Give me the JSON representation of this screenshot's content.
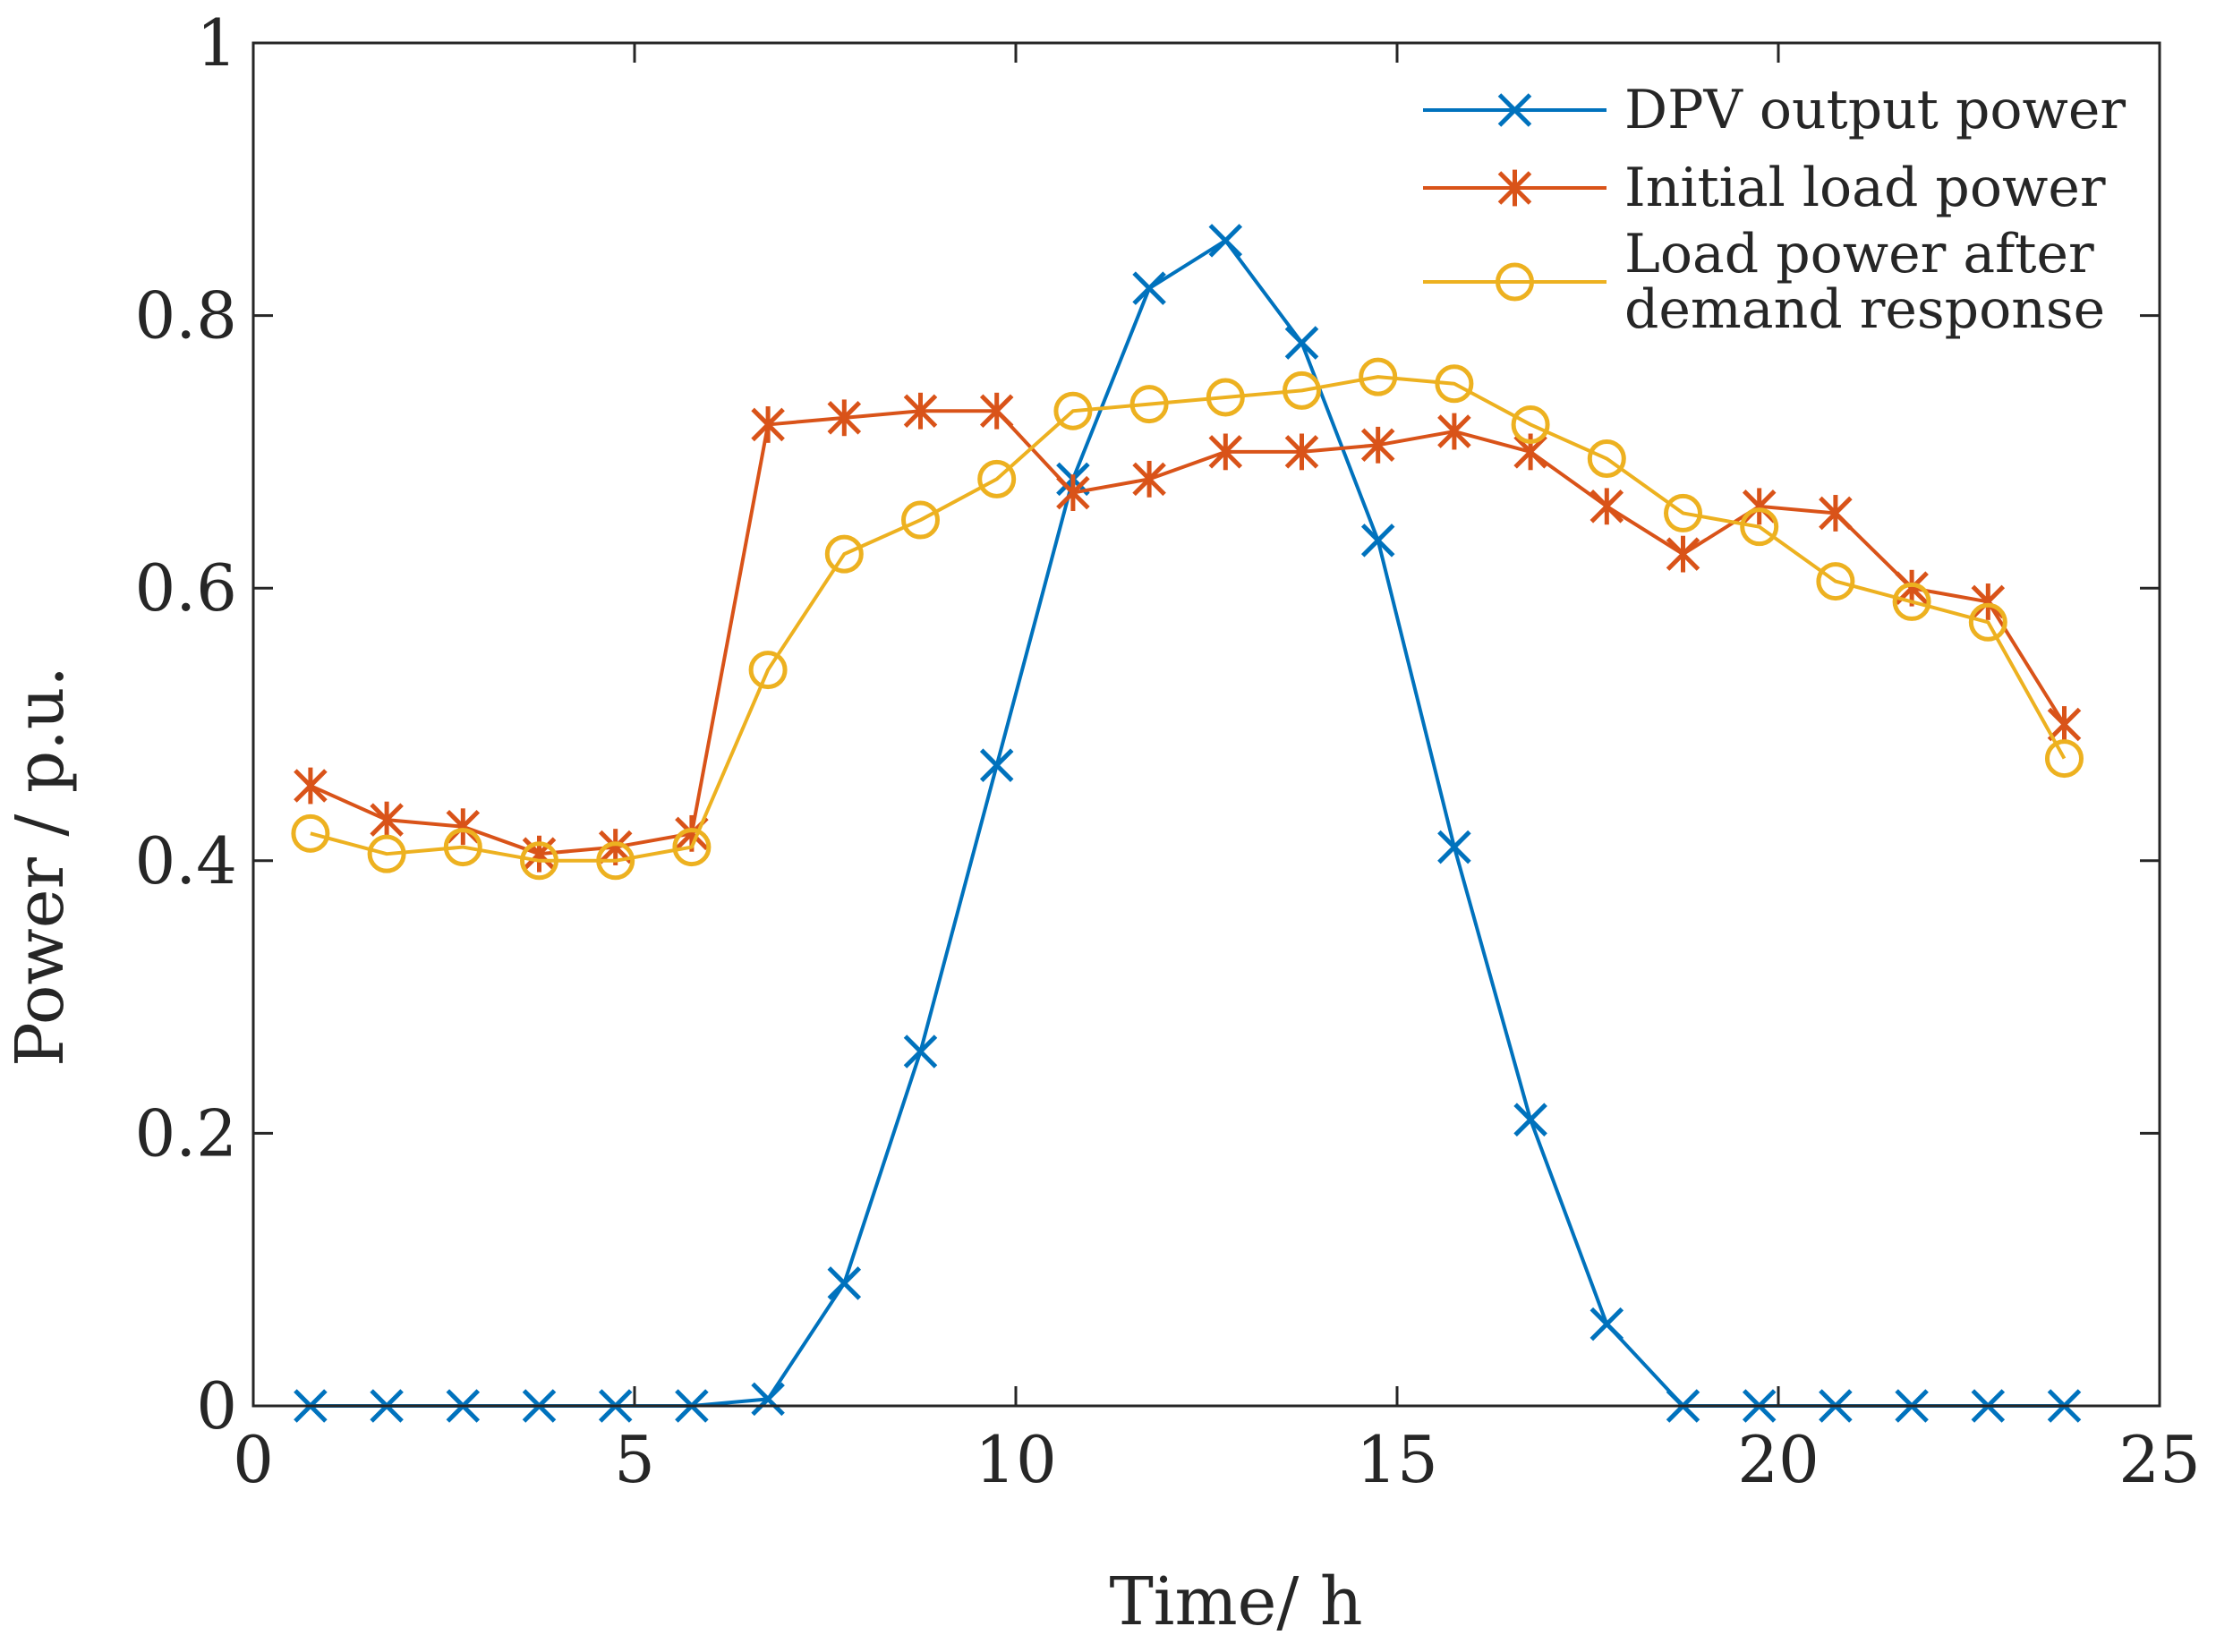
{
  "chart_data": {
    "type": "line",
    "xlabel": "Time/ h",
    "ylabel": "Power / p.u.",
    "xlim": [
      0,
      25
    ],
    "ylim": [
      0,
      1
    ],
    "xticks": [
      0,
      5,
      10,
      15,
      20,
      25
    ],
    "yticks": [
      0,
      0.2,
      0.4,
      0.6,
      0.8,
      1
    ],
    "xtick_labels": [
      "0",
      "5",
      "10",
      "15",
      "20",
      "25"
    ],
    "ytick_labels": [
      "0",
      "0.2",
      "0.4",
      "0.6",
      "0.8",
      "1"
    ],
    "grid": false,
    "legend_position": "top-right",
    "x": [
      0.75,
      1.75,
      2.75,
      3.75,
      4.75,
      5.75,
      6.75,
      7.75,
      8.75,
      9.75,
      10.75,
      11.75,
      12.75,
      13.75,
      14.75,
      15.75,
      16.75,
      17.75,
      18.75,
      19.75,
      20.75,
      21.75,
      22.75,
      23.75
    ],
    "series": [
      {
        "name": "DPV output power",
        "color": "#0072BD",
        "marker": "x",
        "values": [
          0,
          0,
          0,
          0,
          0,
          0,
          0.005,
          0.09,
          0.26,
          0.47,
          0.68,
          0.82,
          0.855,
          0.78,
          0.635,
          0.41,
          0.21,
          0.06,
          0,
          0,
          0,
          0,
          0,
          0
        ]
      },
      {
        "name": "Initial load power",
        "color": "#D95319",
        "marker": "asterisk",
        "values": [
          0.455,
          0.43,
          0.425,
          0.405,
          0.41,
          0.42,
          0.72,
          0.725,
          0.73,
          0.73,
          0.67,
          0.68,
          0.7,
          0.7,
          0.705,
          0.715,
          0.7,
          0.66,
          0.625,
          0.66,
          0.655,
          0.6,
          0.59,
          0.5
        ]
      },
      {
        "name": "Load power after demand response",
        "legend_lines": [
          "Load power after",
          "demand response"
        ],
        "color": "#EDB120",
        "marker": "circle",
        "values": [
          0.42,
          0.405,
          0.41,
          0.4,
          0.4,
          0.41,
          0.54,
          0.625,
          0.65,
          0.68,
          0.73,
          0.735,
          0.74,
          0.745,
          0.755,
          0.75,
          0.72,
          0.695,
          0.655,
          0.645,
          0.605,
          0.59,
          0.575,
          0.475
        ]
      }
    ]
  }
}
